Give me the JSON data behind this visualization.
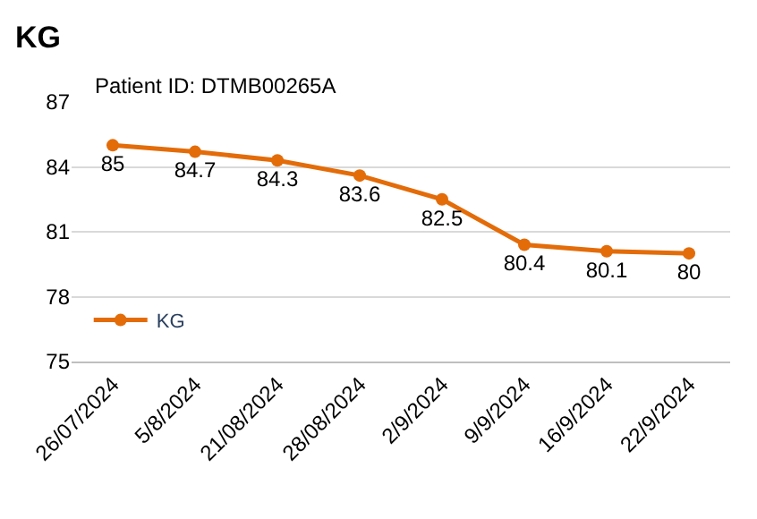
{
  "chart_data": {
    "type": "line",
    "title": "KG",
    "annotations": [
      "Patient ID: DTMB00265A"
    ],
    "categories": [
      "26/07/2024",
      "5/8/2024",
      "21/08/2024",
      "28/08/2024",
      "2/9/2024",
      "9/9/2024",
      "16/9/2024",
      "22/9/2024"
    ],
    "series": [
      {
        "name": "KG",
        "color": "#e36c09",
        "values": [
          85,
          84.7,
          84.3,
          83.6,
          82.5,
          80.4,
          80.1,
          80
        ]
      }
    ],
    "ylim": [
      75,
      87
    ],
    "yticks": [
      75,
      78,
      81,
      84,
      87
    ],
    "grid": "y",
    "legend": "bottom left",
    "marker": "circle",
    "line_style": "solid",
    "data_labels": true
  }
}
